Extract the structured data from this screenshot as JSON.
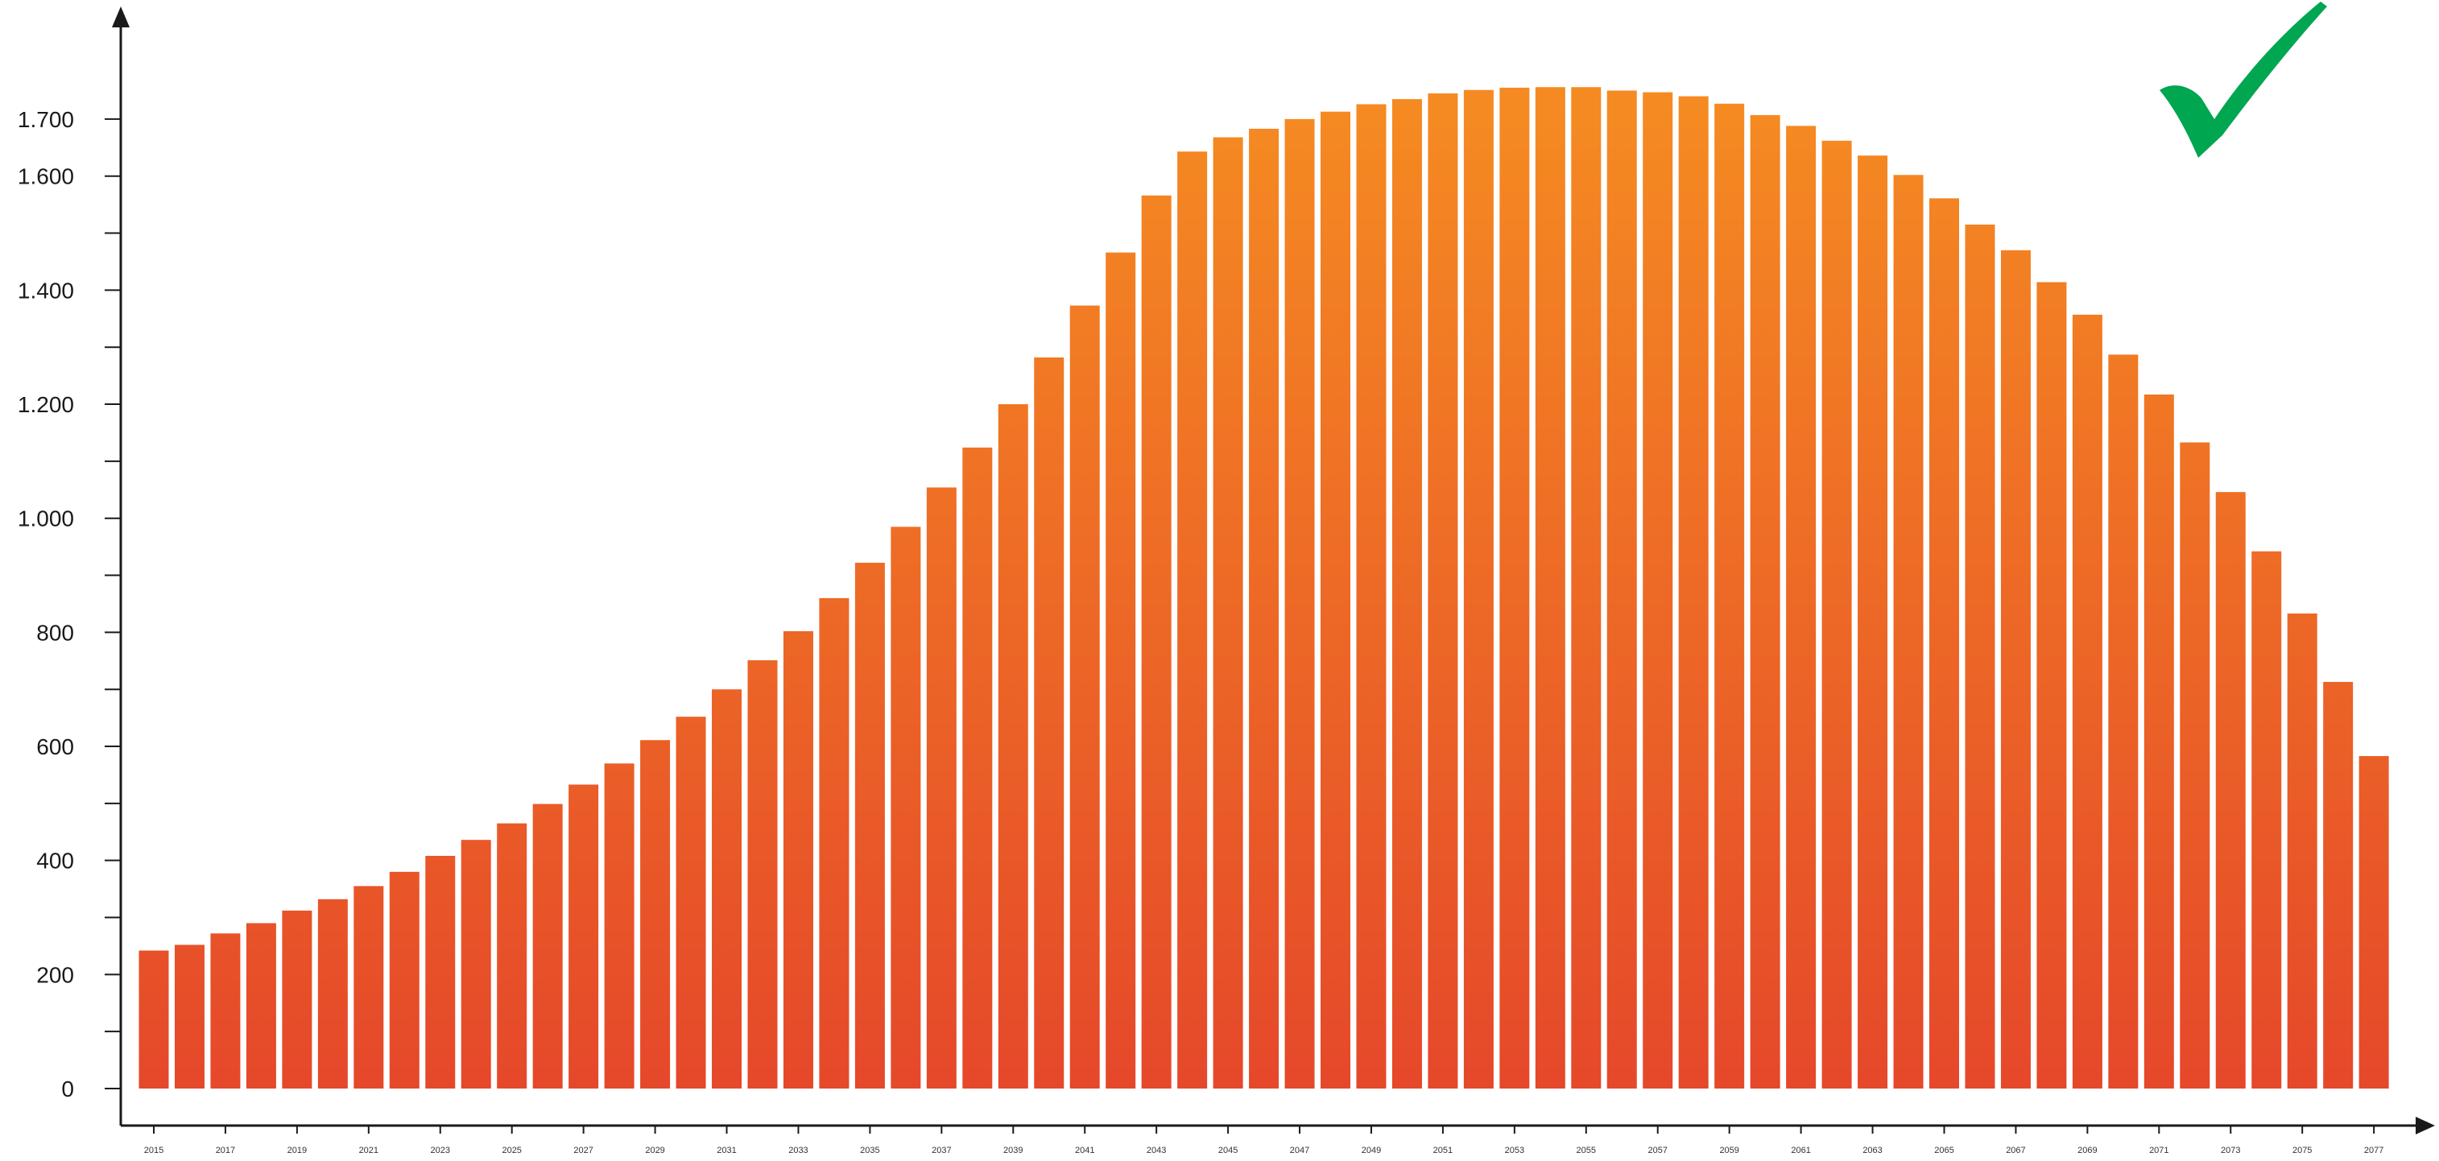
{
  "chart_data": {
    "type": "bar",
    "title": "",
    "xlabel": "",
    "ylabel": "",
    "ylim": [
      0,
      1800
    ],
    "yticks": [
      {
        "value": 0,
        "label": "0"
      },
      {
        "value": 200,
        "label": "200"
      },
      {
        "value": 400,
        "label": "400"
      },
      {
        "value": 600,
        "label": "600"
      },
      {
        "value": 800,
        "label": "800"
      },
      {
        "value": 1000,
        "label": "1.000"
      },
      {
        "value": 1200,
        "label": "1.200"
      },
      {
        "value": 1400,
        "label": "1.400"
      },
      {
        "value": 1600,
        "label": "1.600"
      },
      {
        "value": 1700,
        "label": "1.700"
      }
    ],
    "minor_yticks": [
      100,
      300,
      500,
      700,
      900,
      1100,
      1300,
      1500
    ],
    "xtick_labels": [
      "2015",
      "2017",
      "2019",
      "2021",
      "2023",
      "2025",
      "2027",
      "2029",
      "2031",
      "2033",
      "2035",
      "2037",
      "2039",
      "2041",
      "2043",
      "2045",
      "2047",
      "2049",
      "2051",
      "2053",
      "2055",
      "2057",
      "2059",
      "2061",
      "2063",
      "2065",
      "2067",
      "2069",
      "2071",
      "2073",
      "2075",
      "2077"
    ],
    "categories": [
      "2015",
      "2016",
      "2017",
      "2018",
      "2019",
      "2020",
      "2021",
      "2022",
      "2023",
      "2024",
      "2025",
      "2026",
      "2027",
      "2028",
      "2029",
      "2030",
      "2031",
      "2032",
      "2033",
      "2034",
      "2035",
      "2036",
      "2037",
      "2038",
      "2039",
      "2040",
      "2041",
      "2042",
      "2043",
      "2044",
      "2045",
      "2046",
      "2047",
      "2048",
      "2049",
      "2050",
      "2051",
      "2052",
      "2053",
      "2054",
      "2055",
      "2056",
      "2057",
      "2058",
      "2059",
      "2060",
      "2061",
      "2062",
      "2063",
      "2064",
      "2065",
      "2066",
      "2067",
      "2068",
      "2069",
      "2070",
      "2071",
      "2072",
      "2073",
      "2074",
      "2075",
      "2076",
      "2077"
    ],
    "values": [
      242,
      252,
      272,
      290,
      312,
      332,
      355,
      380,
      408,
      436,
      465,
      499,
      533,
      570,
      611,
      652,
      700,
      751,
      802,
      860,
      922,
      985,
      1054,
      1124,
      1200,
      1282,
      1373,
      1466,
      1566,
      1643,
      1668,
      1683,
      1700,
      1713,
      1726,
      1735,
      1745,
      1751,
      1755,
      1756,
      1756,
      1750,
      1747,
      1740,
      1727,
      1707,
      1688,
      1662,
      1636,
      1602,
      1561,
      1515,
      1470,
      1414,
      1357,
      1287,
      1217,
      1133,
      1046,
      942,
      833,
      713,
      583
    ],
    "grid": false,
    "legend": "none",
    "colors": {
      "bar_top": "#F58A22",
      "bar_bottom": "#E5482A",
      "axis": "#1a1a1a",
      "checkmark": "#00A650"
    },
    "decoration": {
      "icon": "checkmark-icon"
    }
  }
}
